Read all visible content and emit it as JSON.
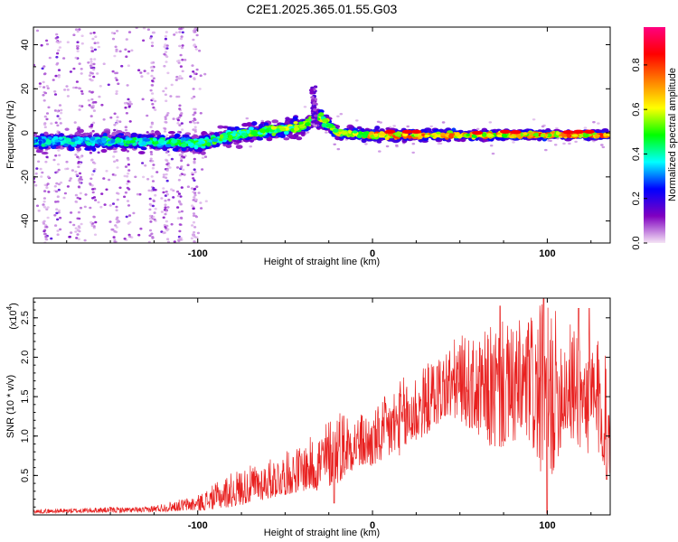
{
  "figure": {
    "title": "C2E1.2025.365.01.55.G03"
  },
  "chart_data": [
    {
      "type": "heatmap",
      "title": "C2E1.2025.365.01.55.G03",
      "xlabel": "Height of straight line (km)",
      "ylabel": "Frequency (Hz)",
      "xlim": [
        -194,
        136
      ],
      "ylim": [
        -50,
        48
      ],
      "xticks": [
        -100,
        0,
        100
      ],
      "yticks": [
        -40,
        -20,
        0,
        20,
        40
      ],
      "xtick_labels": [
        "-100",
        "0",
        "100"
      ],
      "ytick_labels": [
        "-40",
        "-20",
        "0",
        "20",
        "40"
      ],
      "colorbar": {
        "label": "Normalized spectral amplitude",
        "range": [
          0.0,
          0.97
        ],
        "ticks": [
          "0.0",
          "0.2",
          "0.4",
          "0.6",
          "0.8"
        ],
        "colormap": [
          "#f5e4f5",
          "#8000c0",
          "#0000ff",
          "#00ffff",
          "#00ff00",
          "#ffff00",
          "#ff8000",
          "#ff0000",
          "#ff0080"
        ]
      },
      "center_frequency": [
        {
          "x": -190,
          "y": -4
        },
        {
          "x": -160,
          "y": -4
        },
        {
          "x": -130,
          "y": -4
        },
        {
          "x": -100,
          "y": -5
        },
        {
          "x": -80,
          "y": -1
        },
        {
          "x": -60,
          "y": 1
        },
        {
          "x": -40,
          "y": 3
        },
        {
          "x": -30,
          "y": 7
        },
        {
          "x": -20,
          "y": 0
        },
        {
          "x": 0,
          "y": -1
        },
        {
          "x": 50,
          "y": -1
        },
        {
          "x": 100,
          "y": -1
        },
        {
          "x": 136,
          "y": -1
        }
      ],
      "band_width_hz": [
        {
          "x": -194,
          "w": 12
        },
        {
          "x": -100,
          "w": 12
        },
        {
          "x": -60,
          "w": 13
        },
        {
          "x": -30,
          "w": 12
        },
        {
          "x": -20,
          "w": 8
        },
        {
          "x": 136,
          "w": 6
        }
      ],
      "amplitude_trend": [
        {
          "x": -194,
          "a": 0.35
        },
        {
          "x": -100,
          "a": 0.42
        },
        {
          "x": -60,
          "a": 0.5
        },
        {
          "x": -20,
          "a": 0.55
        },
        {
          "x": 10,
          "a": 0.7
        },
        {
          "x": 60,
          "a": 0.65
        },
        {
          "x": 136,
          "a": 0.7
        }
      ],
      "high_amplitude_points": [
        {
          "x": 10,
          "y": 0.5
        },
        {
          "x": 20,
          "y": 0.5
        },
        {
          "x": 25,
          "y": 0.5
        },
        {
          "x": 60,
          "y": 0
        },
        {
          "x": 76,
          "y": 0.5
        },
        {
          "x": 82,
          "y": 0.3
        },
        {
          "x": 112,
          "y": 0.3
        },
        {
          "x": 118,
          "y": 0.5
        },
        {
          "x": 124,
          "y": 0.5
        }
      ],
      "spike": {
        "x": -33,
        "y_min": 3,
        "y_max": 22
      },
      "noise_region": {
        "x_min": -194,
        "x_max": -95,
        "y_min": -50,
        "y_max": 48
      }
    },
    {
      "type": "line",
      "xlabel": "Height of straight line (km)",
      "ylabel": "SNR (10 * v/v)",
      "y_exponent_label": "(x10",
      "y_exponent_power": "4",
      "y_exponent_close": ")",
      "xlim": [
        -194,
        136
      ],
      "ylim": [
        0,
        2.75
      ],
      "xticks": [
        -100,
        0,
        100
      ],
      "yticks": [
        0.5,
        1.0,
        1.5,
        2.0,
        2.5
      ],
      "xtick_labels": [
        "-100",
        "0",
        "100"
      ],
      "ytick_labels": [
        "0.5",
        "1.0",
        "1.5",
        "2.0",
        "2.5"
      ],
      "series": [
        {
          "name": "SNR",
          "color": "#e8201f",
          "envelope": [
            {
              "x": -194,
              "lo": 0.02,
              "hi": 0.07
            },
            {
              "x": -150,
              "lo": 0.03,
              "hi": 0.1
            },
            {
              "x": -130,
              "lo": 0.03,
              "hi": 0.1
            },
            {
              "x": -110,
              "lo": 0.05,
              "hi": 0.2
            },
            {
              "x": -100,
              "lo": 0.05,
              "hi": 0.25
            },
            {
              "x": -80,
              "lo": 0.1,
              "hi": 0.55
            },
            {
              "x": -60,
              "lo": 0.2,
              "hi": 0.7
            },
            {
              "x": -40,
              "lo": 0.3,
              "hi": 0.9
            },
            {
              "x": -30,
              "lo": 0.3,
              "hi": 1.1
            },
            {
              "x": -20,
              "lo": 0.4,
              "hi": 1.4
            },
            {
              "x": -10,
              "lo": 0.6,
              "hi": 1.3
            },
            {
              "x": 0,
              "lo": 0.6,
              "hi": 1.3
            },
            {
              "x": 10,
              "lo": 0.7,
              "hi": 1.6
            },
            {
              "x": 20,
              "lo": 0.8,
              "hi": 1.8
            },
            {
              "x": 30,
              "lo": 1.0,
              "hi": 1.9
            },
            {
              "x": 40,
              "lo": 1.2,
              "hi": 2.1
            },
            {
              "x": 50,
              "lo": 1.2,
              "hi": 2.3
            },
            {
              "x": 60,
              "lo": 1.0,
              "hi": 2.2
            },
            {
              "x": 70,
              "lo": 0.8,
              "hi": 2.5
            },
            {
              "x": 80,
              "lo": 0.9,
              "hi": 2.4
            },
            {
              "x": 90,
              "lo": 0.9,
              "hi": 2.6
            },
            {
              "x": 100,
              "lo": 0.3,
              "hi": 2.7
            },
            {
              "x": 110,
              "lo": 1.0,
              "hi": 2.5
            },
            {
              "x": 120,
              "lo": 0.8,
              "hi": 2.4
            },
            {
              "x": 130,
              "lo": 0.7,
              "hi": 2.3
            },
            {
              "x": 136,
              "lo": 0.5,
              "hi": 1.8
            }
          ],
          "dips": [
            {
              "x": -22,
              "y": 0.15
            },
            {
              "x": 100,
              "y": 0.02
            },
            {
              "x": 134,
              "y": 0.45
            }
          ],
          "peaks": [
            {
              "x": 73,
              "y": 2.65
            },
            {
              "x": 98,
              "y": 2.75
            },
            {
              "x": 118,
              "y": 2.62
            },
            {
              "x": 124,
              "y": 2.62
            }
          ]
        }
      ]
    }
  ]
}
